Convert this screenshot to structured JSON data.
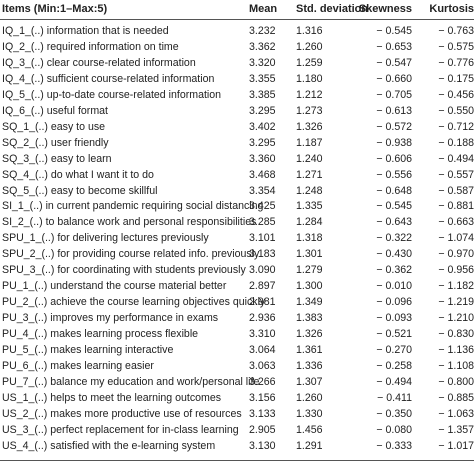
{
  "table": {
    "header": [
      "Items (Min:1–Max:5)",
      "Mean",
      "Std. deviation",
      "Skewness",
      "Kurtosis"
    ],
    "rows": [
      [
        "IQ_1_(..) information that is needed",
        "3.232",
        "1.316",
        "− 0.545",
        "− 0.763"
      ],
      [
        "IQ_2_(..) required information on time",
        "3.362",
        "1.260",
        "− 0.653",
        "− 0.575"
      ],
      [
        "IQ_3_(..) clear course-related information",
        "3.320",
        "1.259",
        "− 0.547",
        "− 0.776"
      ],
      [
        "IQ_4_(..) sufficient course-related information",
        "3.355",
        "1.180",
        "− 0.660",
        "− 0.175"
      ],
      [
        "IQ_5_(..) up-to-date course-related information",
        "3.385",
        "1.212",
        "− 0.705",
        "− 0.456"
      ],
      [
        "IQ_6_(..) useful format",
        "3.295",
        "1.273",
        "− 0.613",
        "− 0.550"
      ],
      [
        "SQ_1_(..) easy to use",
        "3.402",
        "1.326",
        "− 0.572",
        "− 0.712"
      ],
      [
        "SQ_2_(..) user friendly",
        "3.295",
        "1.187",
        "− 0.938",
        "− 0.188"
      ],
      [
        "SQ_3_(..) easy to learn",
        "3.360",
        "1.240",
        "− 0.606",
        "− 0.494"
      ],
      [
        "SQ_4_(..) do what I want it to do",
        "3.468",
        "1.271",
        "− 0.556",
        "− 0.557"
      ],
      [
        "SQ_5_(..) easy to become skillful",
        "3.354",
        "1.248",
        "− 0.648",
        "− 0.587"
      ],
      [
        "SI_1_(..) in current pandemic requiring social distancing",
        "3.425",
        "1.335",
        "− 0.545",
        "− 0.881"
      ],
      [
        "SI_2_(..) to balance work and personal responsibilities",
        "3.285",
        "1.284",
        "− 0.643",
        "− 0.663"
      ],
      [
        "SPU_1_(..) for delivering lectures previously",
        "3.101",
        "1.318",
        "− 0.322",
        "− 1.074"
      ],
      [
        "SPU_2_(..) for providing course related info. previously",
        "3.183",
        "1.301",
        "− 0.430",
        "− 0.970"
      ],
      [
        "SPU_3_(..) for coordinating with students previously",
        "3.090",
        "1.279",
        "− 0.362",
        "− 0.956"
      ],
      [
        "PU_1_(..) understand the course material better",
        "2.897",
        "1.300",
        "− 0.010",
        "− 1.182"
      ],
      [
        "PU_2_(..) achieve the course learning objectives quickly",
        "2.981",
        "1.349",
        "− 0.096",
        "− 1.219"
      ],
      [
        "PU_3_(..) improves my performance in exams",
        "2.936",
        "1.383",
        "− 0.093",
        "− 1.210"
      ],
      [
        "PU_4_(..) makes learning process flexible",
        "3.310",
        "1.326",
        "− 0.521",
        "− 0.830"
      ],
      [
        "PU_5_(..) makes learning interactive",
        "3.064",
        "1.361",
        "− 0.270",
        "− 1.136"
      ],
      [
        "PU_6_(..) makes learning easier",
        "3.063",
        "1.336",
        "− 0.258",
        "− 1.108"
      ],
      [
        "PU_7_(..) balance my education and work/personal life",
        "3.266",
        "1.307",
        "− 0.494",
        "− 0.800"
      ],
      [
        "US_1_(..) helps to meet the learning outcomes",
        "3.156",
        "1.260",
        "− 0.411",
        "− 0.885"
      ],
      [
        "US_2_(..) makes more productive use of resources",
        "3.133",
        "1.330",
        "− 0.350",
        "− 1.063"
      ],
      [
        "US_3_(..) perfect replacement for in-class learning",
        "2.905",
        "1.456",
        "− 0.080",
        "− 1.357"
      ],
      [
        "US_4_(..) satisfied with the e-learning system",
        "3.130",
        "1.291",
        "− 0.333",
        "− 1.017"
      ]
    ]
  }
}
